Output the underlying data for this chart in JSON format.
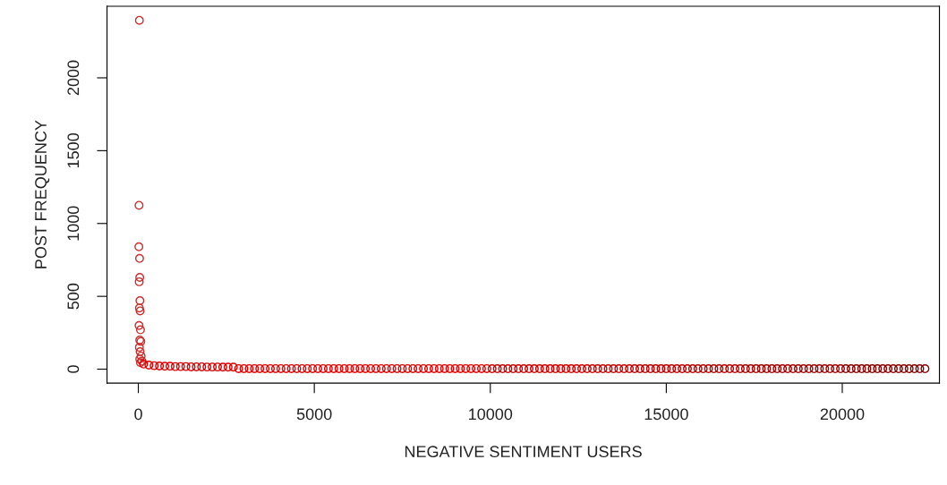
{
  "chart_data": {
    "type": "scatter",
    "xlabel": "NEGATIVE SENTIMENT USERS",
    "ylabel": "POST FREQUENCY",
    "xlim": [
      -890,
      22760
    ],
    "ylim": [
      -96,
      2491
    ],
    "xticks": [
      0,
      5000,
      10000,
      15000,
      20000
    ],
    "yticks": [
      0,
      500,
      1000,
      1500,
      2000
    ],
    "grid": false,
    "marker": "circle",
    "series": [
      {
        "color": "#c83030",
        "x": [
          30,
          20,
          15,
          35,
          40,
          25,
          45,
          30,
          50,
          20,
          60,
          40,
          70,
          30,
          50,
          80,
          40,
          100,
          60
        ],
        "values": [
          2395,
          1125,
          840,
          760,
          630,
          600,
          470,
          420,
          400,
          300,
          270,
          200,
          190,
          150,
          120,
          90,
          70,
          55,
          45
        ]
      },
      {
        "color": "#e00000",
        "x": [
          150,
          300,
          450,
          600,
          750,
          900,
          1050,
          1200,
          1350,
          1500,
          1650,
          1800,
          1950,
          2100,
          2250,
          2400,
          2550,
          2700
        ],
        "values": [
          35,
          28,
          24,
          22,
          20,
          20,
          18,
          18,
          18,
          16,
          16,
          16,
          15,
          15,
          15,
          14,
          14,
          14
        ]
      },
      {
        "color": "#e60000",
        "x": [
          2850,
          3000,
          3150,
          3300,
          3450,
          3600,
          3750,
          3900,
          4050,
          4200,
          4350,
          4500,
          4650,
          4800,
          4950,
          5100,
          5250,
          5400,
          5550,
          5700,
          5850,
          6000,
          6150,
          6300,
          6450,
          6600,
          6750,
          6900,
          7050,
          7200,
          7350,
          7500,
          7650,
          7800,
          7950,
          8100,
          8250,
          8400,
          8550,
          8700,
          8850,
          9000,
          9150,
          9300,
          9450,
          9600,
          9750,
          9900
        ],
        "values": [
          4,
          4,
          4,
          4,
          4,
          4,
          4,
          4,
          4,
          4,
          4,
          4,
          4,
          4,
          4,
          4,
          4,
          4,
          4,
          4,
          4,
          4,
          4,
          4,
          4,
          4,
          4,
          4,
          4,
          4,
          4,
          4,
          4,
          4,
          4,
          4,
          4,
          4,
          4,
          4,
          4,
          4,
          4,
          4,
          4,
          4,
          4,
          4
        ]
      },
      {
        "color": "#d20000",
        "x": [
          10050,
          10200,
          10350,
          10500,
          10650,
          10800,
          10950,
          11100,
          11250,
          11400,
          11550,
          11700,
          11850,
          12000,
          12150,
          12300,
          12450,
          12600,
          12750,
          12900,
          13050,
          13200,
          13350,
          13500,
          13650,
          13800,
          13950
        ],
        "values": [
          3,
          3,
          3,
          3,
          3,
          3,
          3,
          3,
          3,
          3,
          3,
          3,
          3,
          3,
          3,
          3,
          3,
          3,
          3,
          3,
          3,
          3,
          3,
          3,
          3,
          3,
          3
        ]
      },
      {
        "color": "#bc0000",
        "x": [
          14100,
          14250,
          14400,
          14550,
          14700,
          14850,
          15000,
          15150,
          15300,
          15450,
          15600,
          15750,
          15900,
          16050,
          16200,
          16350,
          16500,
          16650,
          16800,
          16950,
          17100
        ],
        "values": [
          3,
          3,
          3,
          3,
          3,
          3,
          3,
          3,
          3,
          3,
          3,
          3,
          3,
          3,
          3,
          3,
          3,
          3,
          3,
          3,
          3
        ]
      },
      {
        "color": "#a40000",
        "x": [
          17250,
          17400,
          17550,
          17700,
          17850,
          18000,
          18150,
          18300,
          18450,
          18600,
          18750,
          18900,
          19050,
          19200,
          19350,
          19500,
          19650,
          19800,
          19950
        ],
        "values": [
          3,
          3,
          3,
          3,
          3,
          3,
          3,
          3,
          3,
          3,
          3,
          3,
          3,
          3,
          3,
          3,
          3,
          3,
          3
        ]
      },
      {
        "color": "#880000",
        "x": [
          20100,
          20250,
          20400,
          20550,
          20700,
          20850,
          21000,
          21150,
          21300,
          21450,
          21600,
          21750,
          21900,
          22050,
          22200,
          22350
        ],
        "values": [
          3,
          3,
          3,
          3,
          3,
          3,
          3,
          3,
          3,
          3,
          3,
          3,
          3,
          3,
          3,
          3
        ]
      }
    ]
  }
}
